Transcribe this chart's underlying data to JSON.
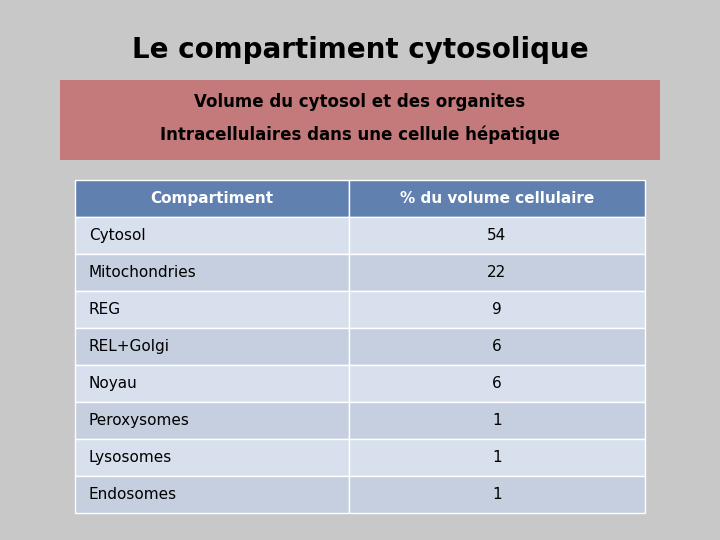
{
  "title": "Le compartiment cytosolique",
  "subtitle_line1": "Volume du cytosol et des organites",
  "subtitle_line2": "Intracellulaires dans une cellule hépatique",
  "col_headers": [
    "Compartiment",
    "% du volume cellulaire"
  ],
  "rows": [
    [
      "Cytosol",
      "54"
    ],
    [
      "Mitochondries",
      "22"
    ],
    [
      "REG",
      "9"
    ],
    [
      "REL+Golgi",
      "6"
    ],
    [
      "Noyau",
      "6"
    ],
    [
      "Peroxysomes",
      "1"
    ],
    [
      "Lysosomes",
      "1"
    ],
    [
      "Endosomes",
      "1"
    ]
  ],
  "bg_color": "#c8c8c8",
  "subtitle_bg_color": "#c47a7a",
  "header_bg_color": "#6080b0",
  "row_even_color": "#d8e0ed",
  "row_odd_color": "#c5cfdf",
  "header_text_color": "#ffffff",
  "title_text_color": "#000000",
  "subtitle_text_color": "#000000",
  "row_text_color": "#000000",
  "title_fontsize": 20,
  "subtitle_fontsize": 12,
  "header_fontsize": 11,
  "row_fontsize": 11,
  "fig_width": 7.2,
  "fig_height": 5.4,
  "dpi": 100
}
